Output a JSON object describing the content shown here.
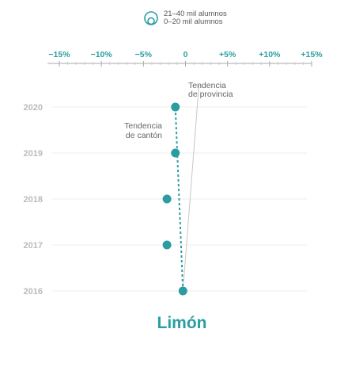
{
  "legend": {
    "items": [
      {
        "label": "21–40 mil alumnos"
      },
      {
        "label": "0–20 mil alumnos"
      }
    ]
  },
  "chart_data": {
    "type": "scatter",
    "title": "Limón",
    "x_ticks": [
      "−15%",
      "−10%",
      "−5%",
      "0",
      "+5%",
      "+10%",
      "+15%"
    ],
    "x_tick_values": [
      -15,
      -10,
      -5,
      0,
      5,
      10,
      15
    ],
    "xlim": [
      -15,
      15
    ],
    "y_categories": [
      "2020",
      "2019",
      "2018",
      "2017",
      "2016"
    ],
    "series": [
      {
        "values": [
          {
            "year": "2020",
            "value": -1.2
          },
          {
            "year": "2019",
            "value": -1.2
          },
          {
            "year": "2018",
            "value": -2.2
          },
          {
            "year": "2017",
            "value": -2.2
          },
          {
            "year": "2016",
            "value": -0.3
          }
        ]
      }
    ],
    "trends": [
      {
        "label_lines": [
          "Tendencia",
          "de provincia"
        ],
        "from": {
          "year": "2016",
          "value": -0.3
        },
        "to": {
          "year": "2020",
          "value": 1.6
        }
      },
      {
        "label_lines": [
          "Tendencia",
          "de cantón"
        ],
        "from": {
          "year": "2016",
          "value": -0.3
        },
        "to": {
          "year": "2020",
          "value": -1.2
        }
      }
    ],
    "colors": {
      "accent": "#2a9da0",
      "tick_text": "#2a9da0",
      "year_text": "#bbbbbb",
      "grid": "#ececec",
      "province_trend": "#c8c8c8",
      "annotation": "#666666"
    },
    "grid": true
  }
}
